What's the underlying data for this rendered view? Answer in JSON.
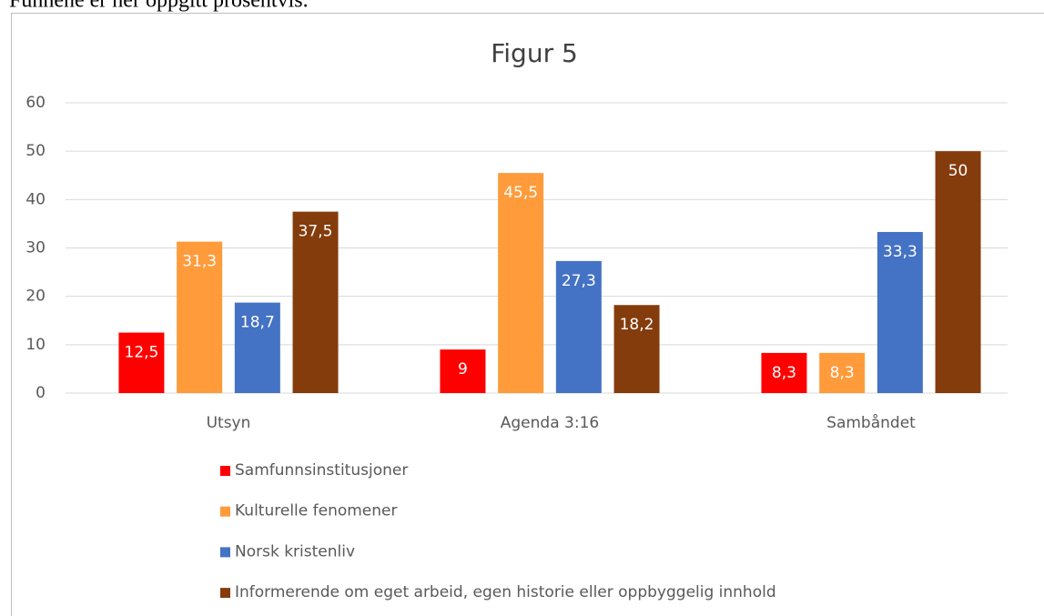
{
  "page_text": "Funnene er her oppgitt prosentvis.",
  "chart_data": {
    "type": "bar",
    "title": "Figur 5",
    "categories": [
      "Utsyn",
      "Agenda 3:16",
      "Sambåndet"
    ],
    "series": [
      {
        "name": "Samfunnsinstitusjoner",
        "color": "#ff0000",
        "values": [
          12.5,
          9,
          8.3
        ],
        "value_labels": [
          "12,5",
          "9",
          "8,3"
        ]
      },
      {
        "name": "Kulturelle fenomener",
        "color": "#ff9b3b",
        "values": [
          31.3,
          45.5,
          8.3
        ],
        "value_labels": [
          "31,3",
          "45,5",
          "8,3"
        ]
      },
      {
        "name": "Norsk kristenliv",
        "color": "#4472c4",
        "values": [
          18.7,
          27.3,
          33.3
        ],
        "value_labels": [
          "18,7",
          "27,3",
          "33,3"
        ]
      },
      {
        "name": "Informerende om eget arbeid, egen historie eller oppbyggelig innhold",
        "color": "#843c0c",
        "values": [
          37.5,
          18.2,
          50
        ],
        "value_labels": [
          "37,5",
          "18,2",
          "50"
        ]
      }
    ],
    "ylim": [
      0,
      60
    ],
    "yticks": [
      0,
      10,
      20,
      30,
      40,
      50,
      60
    ],
    "grid": true,
    "legend": "bottom"
  }
}
